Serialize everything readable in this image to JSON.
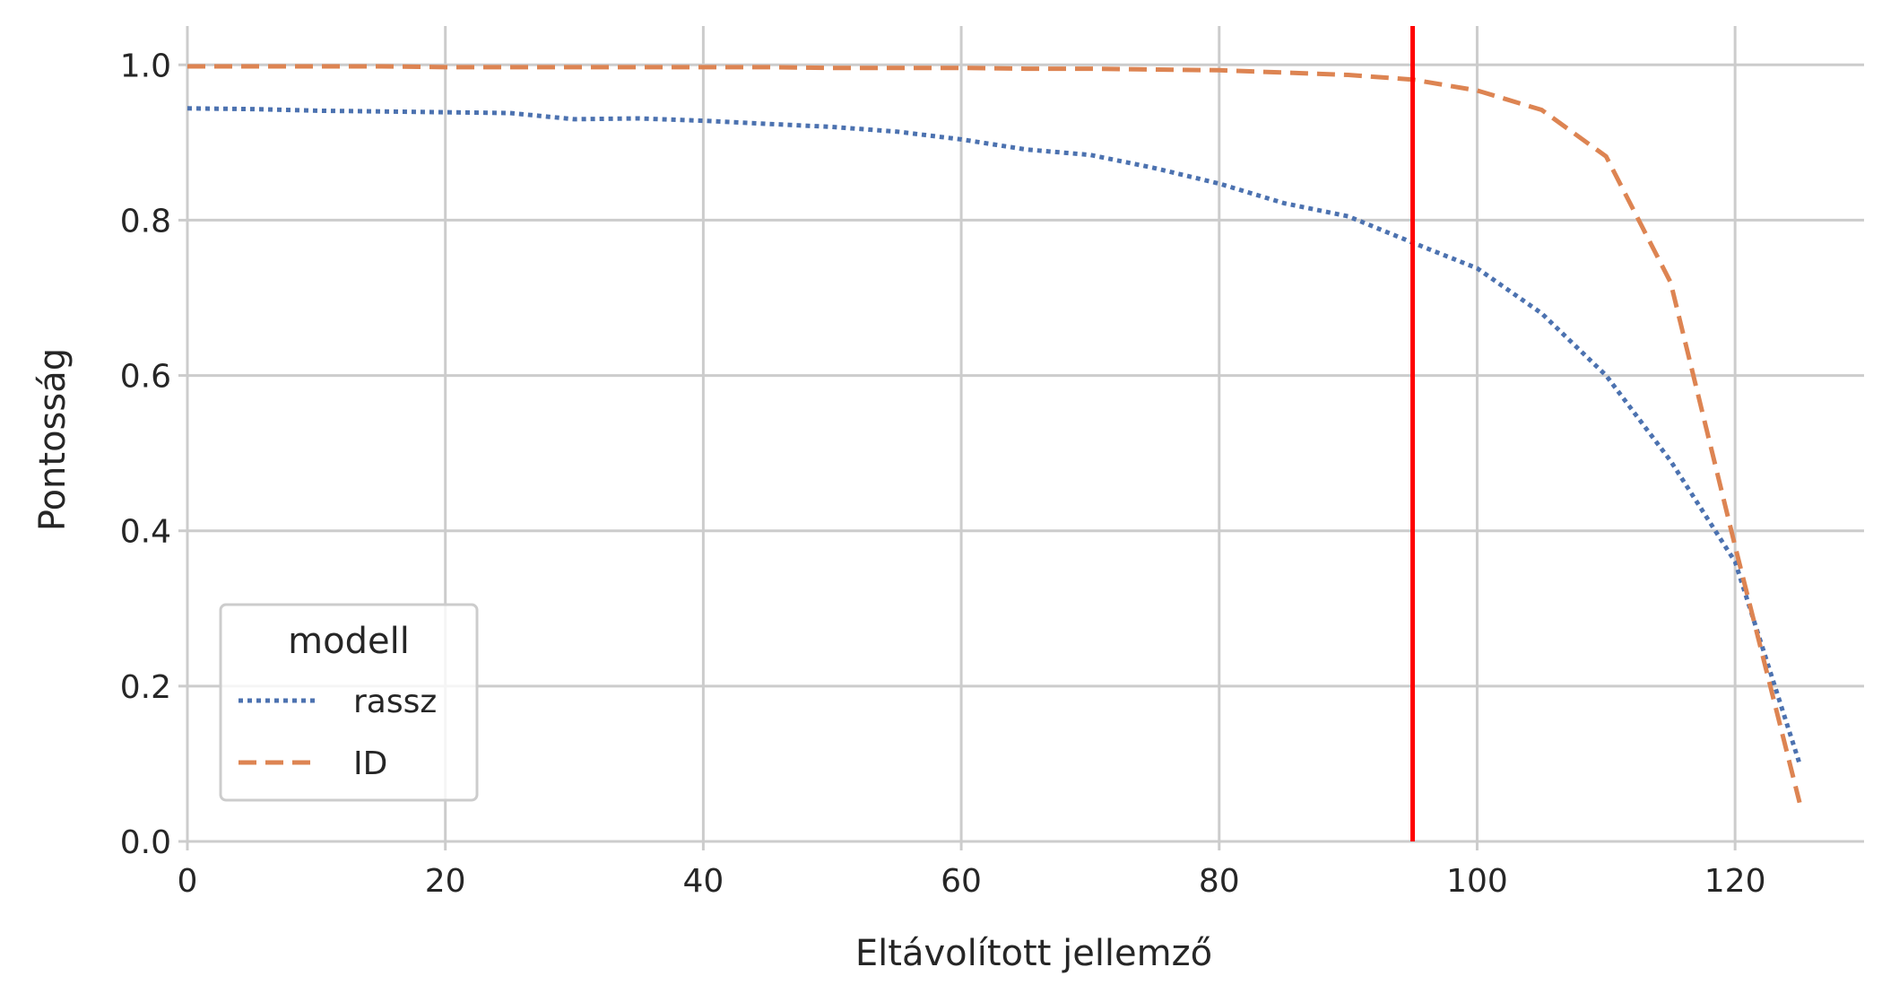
{
  "chart_data": {
    "type": "line",
    "title": "",
    "xlabel": "Eltávolított jellemző",
    "ylabel": "Pontosság",
    "xlim": [
      0,
      130
    ],
    "ylim": [
      0,
      1.05
    ],
    "xticks": [
      0,
      20,
      40,
      60,
      80,
      100,
      120
    ],
    "yticks": [
      0.0,
      0.2,
      0.4,
      0.6,
      0.8,
      1.0
    ],
    "xtick_labels": [
      "0",
      "20",
      "40",
      "60",
      "80",
      "100",
      "120"
    ],
    "ytick_labels": [
      "0.0",
      "0.2",
      "0.4",
      "0.6",
      "0.8",
      "1.0"
    ],
    "grid": true,
    "legend": {
      "title": "modell",
      "position": "lower-left"
    },
    "vline": {
      "x": 95,
      "color": "#ff0000"
    },
    "series": [
      {
        "name": "rassz",
        "color": "#4c72b0",
        "style": "dotted",
        "x": [
          0,
          5,
          10,
          15,
          20,
          25,
          30,
          35,
          40,
          45,
          50,
          55,
          60,
          65,
          70,
          75,
          80,
          85,
          90,
          95,
          100,
          105,
          110,
          115,
          120,
          125
        ],
        "values": [
          0.944,
          0.943,
          0.941,
          0.94,
          0.939,
          0.938,
          0.93,
          0.931,
          0.928,
          0.924,
          0.92,
          0.914,
          0.904,
          0.891,
          0.884,
          0.867,
          0.847,
          0.822,
          0.805,
          0.771,
          0.738,
          0.68,
          0.6,
          0.49,
          0.36,
          0.1
        ]
      },
      {
        "name": "ID",
        "color": "#dd8452",
        "style": "dashed",
        "x": [
          0,
          5,
          10,
          15,
          20,
          25,
          30,
          35,
          40,
          45,
          50,
          55,
          60,
          65,
          70,
          75,
          80,
          85,
          90,
          95,
          100,
          105,
          110,
          115,
          120,
          125
        ],
        "values": [
          0.998,
          0.998,
          0.998,
          0.998,
          0.997,
          0.997,
          0.997,
          0.997,
          0.997,
          0.997,
          0.996,
          0.996,
          0.996,
          0.995,
          0.995,
          0.994,
          0.993,
          0.99,
          0.987,
          0.981,
          0.967,
          0.942,
          0.882,
          0.72,
          0.38,
          0.05
        ]
      }
    ]
  }
}
